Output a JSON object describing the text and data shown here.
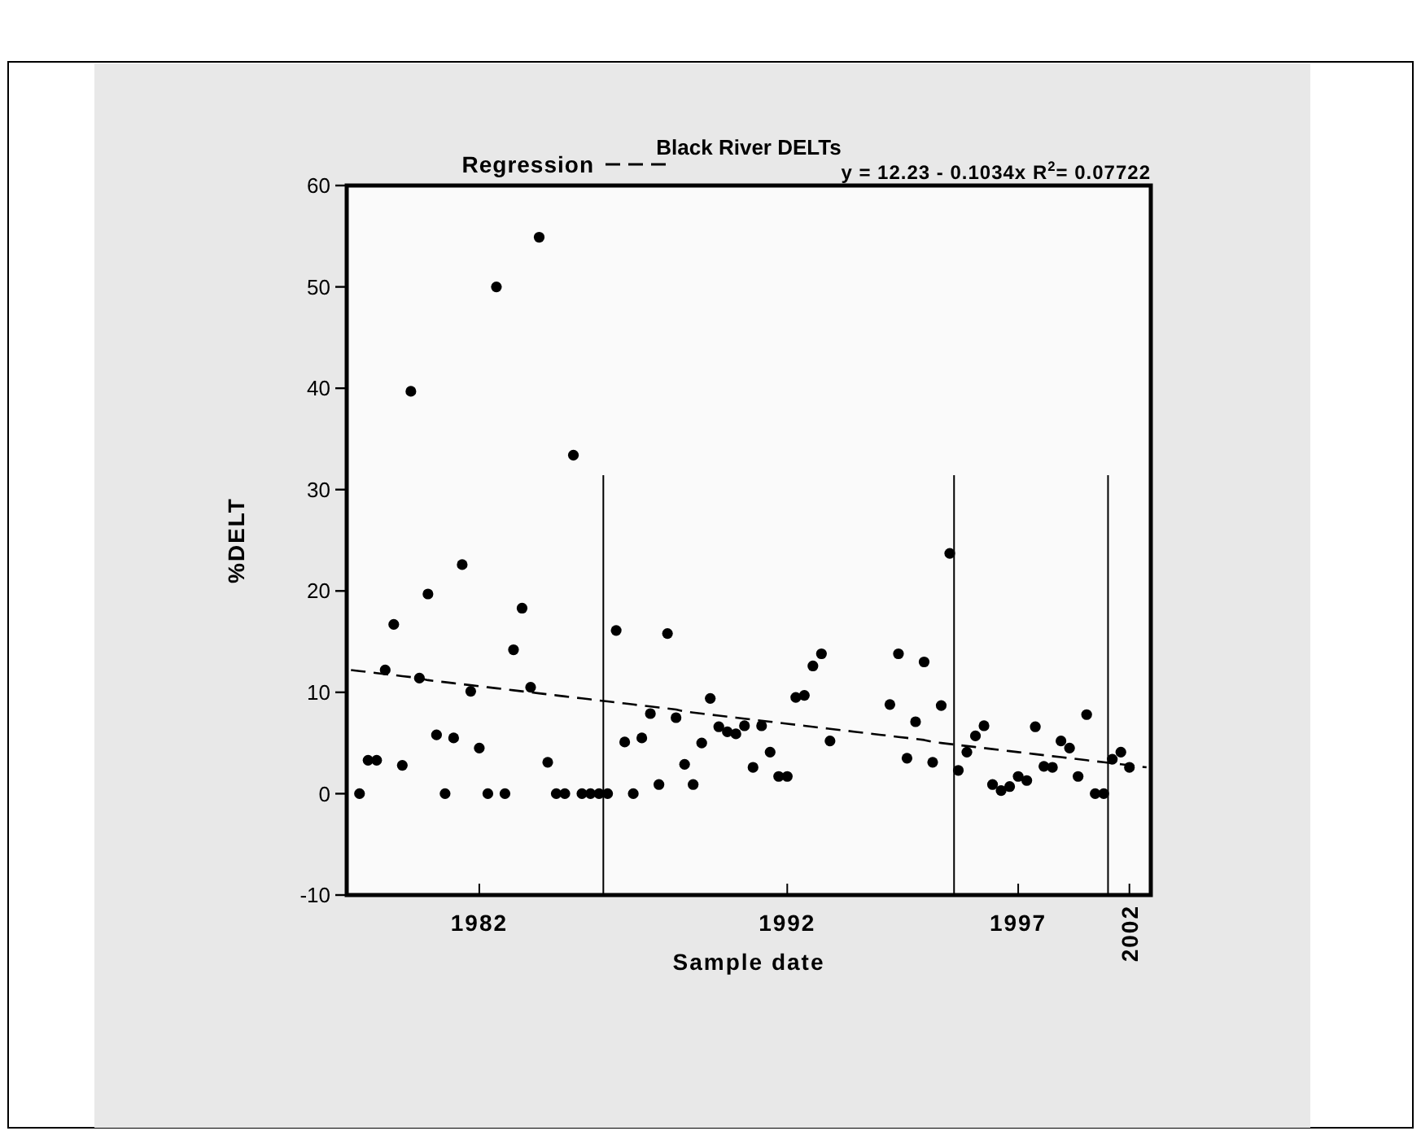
{
  "chart_data": {
    "type": "scatter",
    "title": "Black River DELTs",
    "xlabel": "Sample date",
    "ylabel": "%DELT",
    "categories": [
      null,
      null,
      null,
      null,
      null,
      null,
      null,
      null,
      null,
      null,
      null,
      null,
      null,
      null,
      null,
      "1982",
      null,
      null,
      null,
      null,
      null,
      null,
      null,
      null,
      null,
      null,
      null,
      null,
      null,
      null,
      null,
      null,
      null,
      null,
      null,
      null,
      null,
      null,
      null,
      null,
      null,
      null,
      null,
      null,
      null,
      null,
      null,
      null,
      null,
      null,
      null,
      "1992",
      null,
      null,
      null,
      null,
      null,
      null,
      null,
      null,
      null,
      null,
      null,
      null,
      null,
      null,
      null,
      null,
      null,
      null,
      null,
      null,
      null,
      null,
      null,
      null,
      null,
      null,
      "1997",
      null,
      null,
      null,
      null,
      null,
      null,
      null,
      null,
      null,
      null,
      null,
      null,
      "2002",
      null,
      null
    ],
    "ylim": [
      -10,
      60
    ],
    "yticks": [
      -10,
      0,
      10,
      20,
      30,
      40,
      50,
      60
    ],
    "legend": "top",
    "marker": "circle",
    "annotations": [
      "y = 12.23 - 0.1034x   R$^{2}$= 0.07722"
    ],
    "series": [
      {
        "color": "#000000",
        "values": [
          null,
          0,
          3.3,
          3.3,
          12.2,
          16.7,
          2.8,
          39.7,
          11.4,
          19.7,
          5.8,
          0,
          5.5,
          22.6,
          10.1,
          4.5,
          0,
          50,
          0,
          14.2,
          18.3,
          10.5,
          54.9,
          3.1,
          0,
          0,
          33.4,
          0,
          0,
          0,
          0,
          16.1,
          5.1,
          0,
          5.5,
          7.9,
          0.9,
          15.8,
          7.5,
          2.9,
          0.9,
          5.0,
          9.4,
          6.6,
          6.1,
          5.9,
          6.7,
          2.6,
          6.7,
          4.1,
          1.7,
          1.7,
          9.5,
          9.7,
          12.6,
          13.8,
          5.2,
          null,
          null,
          null,
          null,
          null,
          null,
          8.8,
          13.8,
          3.5,
          7.1,
          13.0,
          3.1,
          8.7,
          23.7,
          2.3,
          4.1,
          5.7,
          6.7,
          0.9,
          0.3,
          0.7,
          1.7,
          1.3,
          6.6,
          2.7,
          2.6,
          5.2,
          4.5,
          1.7,
          7.8,
          0,
          0,
          3.4,
          4.1,
          2.6,
          null,
          null
        ]
      },
      {
        "type": "line",
        "name": "Regression",
        "color": "#000000",
        "line_style": "dashed",
        "marker": "none",
        "values": [
          12.2,
          12.1,
          12.0,
          11.9,
          11.8,
          11.7,
          11.6,
          11.5,
          11.4,
          11.2,
          11.1,
          11.0,
          10.9,
          10.8,
          10.7,
          10.6,
          10.5,
          10.4,
          10.3,
          10.2,
          10.1,
          10.0,
          9.9,
          9.8,
          9.7,
          9.6,
          9.5,
          9.4,
          9.3,
          9.2,
          9.1,
          9.0,
          8.9,
          8.8,
          8.7,
          8.6,
          8.5,
          8.4,
          8.3,
          8.1,
          8.0,
          7.9,
          7.8,
          7.7,
          7.6,
          7.5,
          7.4,
          7.3,
          7.2,
          7.1,
          7.0,
          6.9,
          6.8,
          6.7,
          6.6,
          6.5,
          6.4,
          6.3,
          6.2,
          6.1,
          6.0,
          5.9,
          5.8,
          5.7,
          5.6,
          5.5,
          5.4,
          5.3,
          5.1,
          5.0,
          4.9,
          4.8,
          4.7,
          4.6,
          4.5,
          4.4,
          4.3,
          4.2,
          4.1,
          4.0,
          3.9,
          3.8,
          3.7,
          3.6,
          3.5,
          3.4,
          3.3,
          3.2,
          3.1,
          3.0,
          2.9,
          2.8,
          2.7,
          2.6
        ]
      }
    ]
  }
}
